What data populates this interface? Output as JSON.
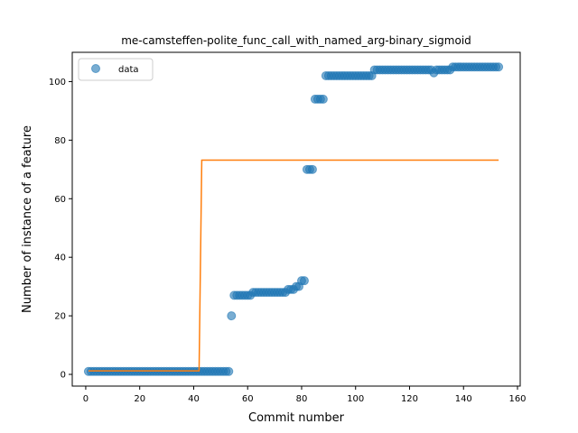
{
  "chart_data": {
    "type": "scatter",
    "title": "me-camsteffen-polite_func_call_with_named_arg-binary_sigmoid",
    "xlabel": "Commit number",
    "ylabel": "Number of instance of a feature",
    "xlim": [
      -5,
      161
    ],
    "ylim": [
      -4,
      110
    ],
    "xticks": [
      0,
      20,
      40,
      60,
      80,
      100,
      120,
      140,
      160
    ],
    "yticks": [
      0,
      20,
      40,
      60,
      80,
      100
    ],
    "grid": false,
    "legend_position": "top-left",
    "series": [
      {
        "name": "data",
        "kind": "points",
        "color": "#1f77b4",
        "runs": [
          {
            "from": 1,
            "to": 53,
            "y": 1
          },
          {
            "from": 54,
            "to": 54,
            "y": 20
          },
          {
            "from": 55,
            "to": 61,
            "y": 27
          },
          {
            "from": 62,
            "to": 74,
            "y": 28
          },
          {
            "from": 75,
            "to": 77,
            "y": 29
          },
          {
            "from": 78,
            "to": 79,
            "y": 30
          },
          {
            "from": 80,
            "to": 81,
            "y": 32
          },
          {
            "from": 82,
            "to": 84,
            "y": 70
          },
          {
            "from": 85,
            "to": 88,
            "y": 94
          },
          {
            "from": 89,
            "to": 106,
            "y": 102
          },
          {
            "from": 107,
            "to": 128,
            "y": 104
          },
          {
            "from": 129,
            "to": 129,
            "y": 103
          },
          {
            "from": 130,
            "to": 135,
            "y": 104
          },
          {
            "from": 136,
            "to": 153,
            "y": 105
          }
        ]
      },
      {
        "kind": "line",
        "color": "#ff7f0e",
        "x": [
          1,
          42,
          43,
          153
        ],
        "y": [
          1.2,
          1.2,
          73.2,
          73.2
        ]
      }
    ]
  }
}
